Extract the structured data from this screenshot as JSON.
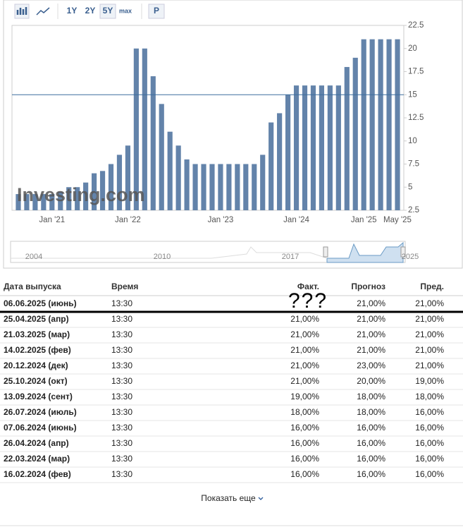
{
  "toolbar": {
    "buttons": [
      "1Y",
      "2Y",
      "5Y",
      "max",
      "P"
    ]
  },
  "chart_data": {
    "type": "bar",
    "watermark": "Investing.com",
    "categories": [
      null,
      null,
      null,
      null,
      "Jan '21",
      null,
      null,
      null,
      null,
      null,
      null,
      null,
      null,
      "Jan '22",
      null,
      null,
      null,
      null,
      null,
      null,
      null,
      null,
      null,
      null,
      "Jan '23",
      null,
      null,
      null,
      null,
      null,
      null,
      null,
      null,
      "Jan '24",
      null,
      null,
      null,
      null,
      null,
      null,
      null,
      "Jan '25",
      null,
      null,
      null,
      "May '25"
    ],
    "values": [
      4.25,
      4.25,
      4.25,
      4.25,
      4.25,
      4.5,
      5,
      5,
      5.5,
      6.5,
      6.75,
      7.5,
      8.5,
      9.5,
      20,
      20,
      17,
      14,
      11,
      9.5,
      8,
      7.5,
      7.5,
      7.5,
      7.5,
      7.5,
      7.5,
      7.5,
      7.5,
      8.5,
      12,
      13,
      15,
      16,
      16,
      16,
      16,
      16,
      16,
      18,
      19,
      21,
      21,
      21,
      21,
      21
    ],
    "color": "#6383aa",
    "reference_line": 15,
    "ylim": [
      2.5,
      22.5
    ],
    "yticks": [
      2.5,
      5,
      7.5,
      10,
      12.5,
      15,
      17.5,
      20,
      22.5
    ],
    "navigator_labels": [
      "2004",
      "2010",
      "2017",
      "2025"
    ]
  },
  "table": {
    "header": [
      "Дата выпуска",
      "Время",
      "Факт.",
      "Прогноз",
      "Пред."
    ],
    "annotation": "???",
    "rows": [
      {
        "date": "06.06.2025 (июнь)",
        "time": "13:30",
        "forecast": "21,00%",
        "previous": "21,00%"
      },
      {
        "date": "25.04.2025 (апр)",
        "time": "13:30",
        "actual": "21,00%",
        "forecast": "21,00%",
        "previous": "21,00%"
      },
      {
        "date": "21.03.2025 (мар)",
        "time": "13:30",
        "actual": "21,00%",
        "forecast": "21,00%",
        "previous": "21,00%"
      },
      {
        "date": "14.02.2025 (фев)",
        "time": "13:30",
        "actual": "21,00%",
        "forecast": "21,00%",
        "previous": "21,00%"
      },
      {
        "date": "20.12.2024 (дек)",
        "time": "13:30",
        "actual": "21,00%",
        "actual_color": "#d91e1e",
        "forecast": "23,00%",
        "previous": "21,00%"
      },
      {
        "date": "25.10.2024 (окт)",
        "time": "13:30",
        "actual": "21,00%",
        "actual_color": "#2f9e2f",
        "forecast": "20,00%",
        "previous": "19,00%"
      },
      {
        "date": "13.09.2024 (сент)",
        "time": "13:30",
        "actual": "19,00%",
        "actual_color": "#2f9e2f",
        "forecast": "18,00%",
        "previous": "18,00%"
      },
      {
        "date": "26.07.2024 (июль)",
        "time": "13:30",
        "actual": "18,00%",
        "forecast": "18,00%",
        "previous": "16,00%"
      },
      {
        "date": "07.06.2024 (июнь)",
        "time": "13:30",
        "actual": "16,00%",
        "forecast": "16,00%",
        "previous": "16,00%"
      },
      {
        "date": "26.04.2024 (апр)",
        "time": "13:30",
        "actual": "16,00%",
        "forecast": "16,00%",
        "previous": "16,00%"
      },
      {
        "date": "22.03.2024 (мар)",
        "time": "13:30",
        "actual": "16,00%",
        "forecast": "16,00%",
        "previous": "16,00%"
      },
      {
        "date": "16.02.2024 (фев)",
        "time": "13:30",
        "actual": "16,00%",
        "forecast": "16,00%",
        "previous": "16,00%"
      }
    ]
  },
  "show_more": "Показать еще"
}
